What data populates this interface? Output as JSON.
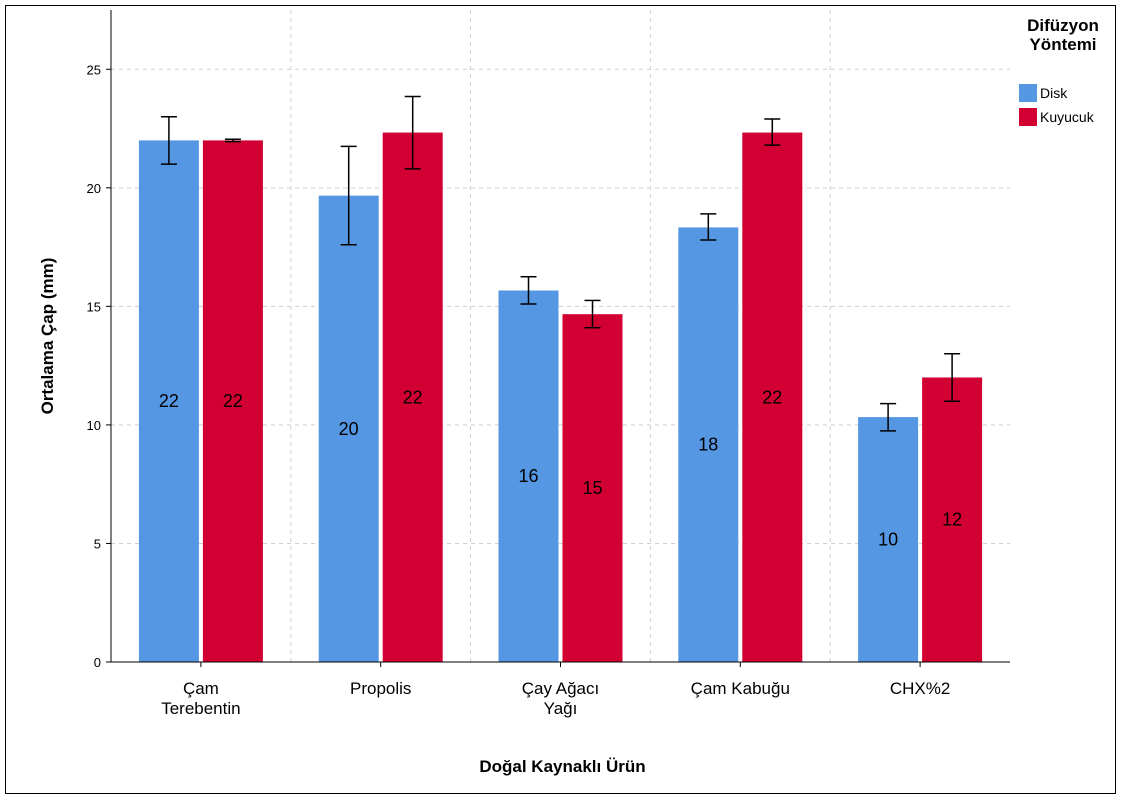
{
  "chart_data": {
    "type": "bar",
    "xlabel": "Doğal Kaynaklı Ürün",
    "ylabel": "Ortalama Çap (mm)",
    "ylim": [
      0,
      27.5
    ],
    "yticks": [
      0,
      5,
      10,
      15,
      20,
      25
    ],
    "grid": true,
    "legend_title": [
      "Difüzyon",
      "Yöntemi"
    ],
    "legend_position": "top-right",
    "categories": [
      [
        "Çam",
        "Terebentin"
      ],
      [
        "Propolis"
      ],
      [
        "Çay Ağacı",
        "Yağı"
      ],
      [
        "Çam Kabuğu"
      ],
      [
        "CHX%2"
      ]
    ],
    "series": [
      {
        "name": "Disk",
        "color": "#5597e3",
        "values": [
          22,
          19.67,
          15.67,
          18.33,
          10.33
        ],
        "error_low": [
          21,
          17.6,
          15.1,
          17.8,
          9.75
        ],
        "error_high": [
          23,
          21.75,
          16.25,
          18.9,
          10.9
        ],
        "labels": [
          "22",
          "20",
          "16",
          "18",
          "10"
        ]
      },
      {
        "name": "Kuyucuk",
        "color": "#d20032",
        "values": [
          22,
          22.33,
          14.67,
          22.33,
          12
        ],
        "error_low": [
          21.95,
          20.8,
          14.1,
          21.8,
          11
        ],
        "error_high": [
          22.05,
          23.85,
          15.25,
          22.9,
          13
        ],
        "labels": [
          "22",
          "22",
          "15",
          "22",
          "12"
        ]
      }
    ]
  }
}
